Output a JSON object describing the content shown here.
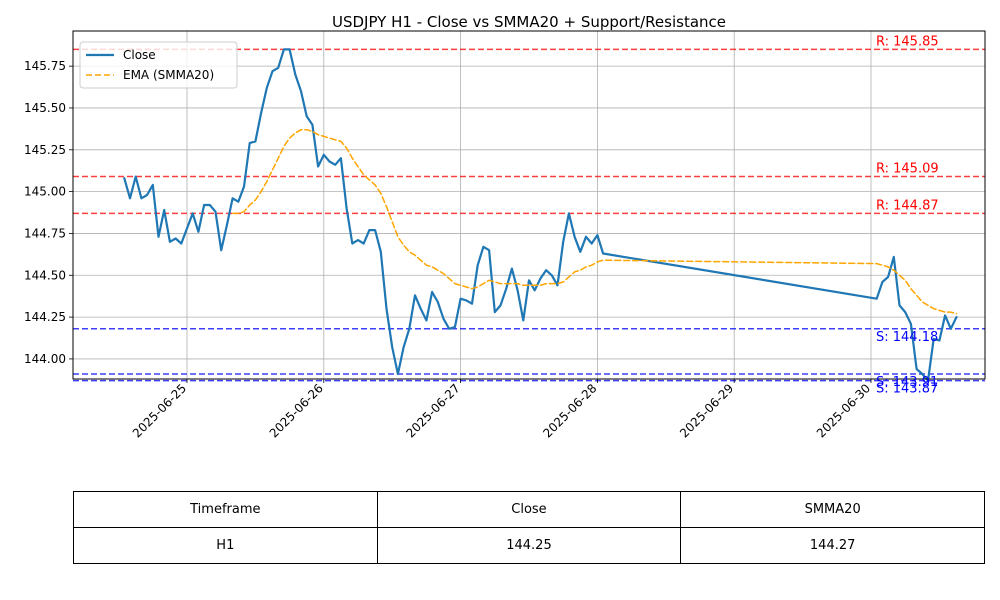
{
  "chart_data": {
    "type": "line",
    "title": "USDJPY H1 - Close vs SMMA20 + Support/Resistance",
    "xlabel": "",
    "ylabel": "",
    "x_ticks": [
      "2025-06-25",
      "2025-06-26",
      "2025-06-27",
      "2025-06-28",
      "2025-06-29",
      "2025-06-30"
    ],
    "xlim": [
      "2025-06-24 04:00",
      "2025-06-30 20:00"
    ],
    "y_ticks": [
      "144.00",
      "144.25",
      "144.50",
      "144.75",
      "145.00",
      "145.25",
      "145.50",
      "145.75"
    ],
    "ylim": [
      143.88,
      145.96
    ],
    "grid": true,
    "legend": {
      "placement": "top-left",
      "entries": [
        {
          "label": "Close",
          "color": "#1f77b4",
          "style": "solid"
        },
        {
          "label": "EMA (SMMA20)",
          "color": "#ffa500",
          "style": "dashed"
        }
      ]
    },
    "series": [
      {
        "name": "Close",
        "color": "#1f77b4",
        "points": [
          [
            "2025-06-24 13:00",
            145.08
          ],
          [
            "2025-06-24 14:00",
            144.96
          ],
          [
            "2025-06-24 15:00",
            145.09
          ],
          [
            "2025-06-24 16:00",
            144.96
          ],
          [
            "2025-06-24 17:00",
            144.98
          ],
          [
            "2025-06-24 18:00",
            145.04
          ],
          [
            "2025-06-24 19:00",
            144.73
          ],
          [
            "2025-06-24 20:00",
            144.89
          ],
          [
            "2025-06-24 21:00",
            144.7
          ],
          [
            "2025-06-24 22:00",
            144.72
          ],
          [
            "2025-06-24 23:00",
            144.69
          ],
          [
            "2025-06-25 00:00",
            144.78
          ],
          [
            "2025-06-25 01:00",
            144.87
          ],
          [
            "2025-06-25 02:00",
            144.76
          ],
          [
            "2025-06-25 03:00",
            144.92
          ],
          [
            "2025-06-25 04:00",
            144.92
          ],
          [
            "2025-06-25 05:00",
            144.88
          ],
          [
            "2025-06-25 06:00",
            144.65
          ],
          [
            "2025-06-25 07:00",
            144.8
          ],
          [
            "2025-06-25 08:00",
            144.96
          ],
          [
            "2025-06-25 09:00",
            144.94
          ],
          [
            "2025-06-25 10:00",
            145.03
          ],
          [
            "2025-06-25 11:00",
            145.29
          ],
          [
            "2025-06-25 12:00",
            145.3
          ],
          [
            "2025-06-25 13:00",
            145.47
          ],
          [
            "2025-06-25 14:00",
            145.62
          ],
          [
            "2025-06-25 15:00",
            145.72
          ],
          [
            "2025-06-25 16:00",
            145.74
          ],
          [
            "2025-06-25 17:00",
            145.85
          ],
          [
            "2025-06-25 18:00",
            145.85
          ],
          [
            "2025-06-25 19:00",
            145.7
          ],
          [
            "2025-06-25 20:00",
            145.6
          ],
          [
            "2025-06-25 21:00",
            145.45
          ],
          [
            "2025-06-25 22:00",
            145.4
          ],
          [
            "2025-06-25 23:00",
            145.15
          ],
          [
            "2025-06-26 00:00",
            145.22
          ],
          [
            "2025-06-26 01:00",
            145.18
          ],
          [
            "2025-06-26 02:00",
            145.16
          ],
          [
            "2025-06-26 03:00",
            145.2
          ],
          [
            "2025-06-26 04:00",
            144.9
          ],
          [
            "2025-06-26 05:00",
            144.69
          ],
          [
            "2025-06-26 06:00",
            144.71
          ],
          [
            "2025-06-26 07:00",
            144.69
          ],
          [
            "2025-06-26 08:00",
            144.77
          ],
          [
            "2025-06-26 09:00",
            144.77
          ],
          [
            "2025-06-26 10:00",
            144.64
          ],
          [
            "2025-06-26 11:00",
            144.3
          ],
          [
            "2025-06-26 12:00",
            144.07
          ],
          [
            "2025-06-26 13:00",
            143.91
          ],
          [
            "2025-06-26 14:00",
            144.07
          ],
          [
            "2025-06-26 15:00",
            144.18
          ],
          [
            "2025-06-26 16:00",
            144.38
          ],
          [
            "2025-06-26 17:00",
            144.3
          ],
          [
            "2025-06-26 18:00",
            144.23
          ],
          [
            "2025-06-26 19:00",
            144.4
          ],
          [
            "2025-06-26 20:00",
            144.34
          ],
          [
            "2025-06-26 21:00",
            144.24
          ],
          [
            "2025-06-26 22:00",
            144.18
          ],
          [
            "2025-06-26 23:00",
            144.19
          ],
          [
            "2025-06-27 00:00",
            144.36
          ],
          [
            "2025-06-27 01:00",
            144.35
          ],
          [
            "2025-06-27 02:00",
            144.33
          ],
          [
            "2025-06-27 03:00",
            144.56
          ],
          [
            "2025-06-27 04:00",
            144.67
          ],
          [
            "2025-06-27 05:00",
            144.65
          ],
          [
            "2025-06-27 06:00",
            144.28
          ],
          [
            "2025-06-27 07:00",
            144.32
          ],
          [
            "2025-06-27 08:00",
            144.42
          ],
          [
            "2025-06-27 09:00",
            144.54
          ],
          [
            "2025-06-27 10:00",
            144.41
          ],
          [
            "2025-06-27 11:00",
            144.23
          ],
          [
            "2025-06-27 12:00",
            144.47
          ],
          [
            "2025-06-27 13:00",
            144.41
          ],
          [
            "2025-06-27 14:00",
            144.48
          ],
          [
            "2025-06-27 15:00",
            144.53
          ],
          [
            "2025-06-27 16:00",
            144.5
          ],
          [
            "2025-06-27 17:00",
            144.44
          ],
          [
            "2025-06-27 18:00",
            144.7
          ],
          [
            "2025-06-27 19:00",
            144.87
          ],
          [
            "2025-06-27 20:00",
            144.73
          ],
          [
            "2025-06-27 21:00",
            144.64
          ],
          [
            "2025-06-27 22:00",
            144.73
          ],
          [
            "2025-06-27 23:00",
            144.69
          ],
          [
            "2025-06-28 00:00",
            144.74
          ],
          [
            "2025-06-28 01:00",
            144.63
          ],
          [
            "2025-06-30 01:00",
            144.36
          ],
          [
            "2025-06-30 02:00",
            144.46
          ],
          [
            "2025-06-30 03:00",
            144.49
          ],
          [
            "2025-06-30 04:00",
            144.61
          ],
          [
            "2025-06-30 05:00",
            144.32
          ],
          [
            "2025-06-30 06:00",
            144.28
          ],
          [
            "2025-06-30 07:00",
            144.21
          ],
          [
            "2025-06-30 08:00",
            143.94
          ],
          [
            "2025-06-30 09:00",
            143.91
          ],
          [
            "2025-06-30 10:00",
            143.87
          ],
          [
            "2025-06-30 11:00",
            144.12
          ],
          [
            "2025-06-30 12:00",
            144.11
          ],
          [
            "2025-06-30 13:00",
            144.26
          ],
          [
            "2025-06-30 14:00",
            144.18
          ],
          [
            "2025-06-30 15:00",
            144.25
          ]
        ]
      },
      {
        "name": "EMA (SMMA20)",
        "color": "#ffa500",
        "points": [
          [
            "2025-06-25 08:00",
            144.87
          ],
          [
            "2025-06-25 09:00",
            144.87
          ],
          [
            "2025-06-25 10:00",
            144.88
          ],
          [
            "2025-06-25 11:00",
            144.92
          ],
          [
            "2025-06-25 12:00",
            144.95
          ],
          [
            "2025-06-25 13:00",
            145.0
          ],
          [
            "2025-06-25 14:00",
            145.06
          ],
          [
            "2025-06-25 15:00",
            145.13
          ],
          [
            "2025-06-25 16:00",
            145.2
          ],
          [
            "2025-06-25 17:00",
            145.27
          ],
          [
            "2025-06-25 18:00",
            145.32
          ],
          [
            "2025-06-25 19:00",
            145.35
          ],
          [
            "2025-06-25 20:00",
            145.37
          ],
          [
            "2025-06-25 21:00",
            145.37
          ],
          [
            "2025-06-25 22:00",
            145.36
          ],
          [
            "2025-06-25 23:00",
            145.34
          ],
          [
            "2025-06-26 00:00",
            145.33
          ],
          [
            "2025-06-26 01:00",
            145.32
          ],
          [
            "2025-06-26 02:00",
            145.31
          ],
          [
            "2025-06-26 03:00",
            145.3
          ],
          [
            "2025-06-26 04:00",
            145.26
          ],
          [
            "2025-06-26 05:00",
            145.2
          ],
          [
            "2025-06-26 06:00",
            145.15
          ],
          [
            "2025-06-26 07:00",
            145.1
          ],
          [
            "2025-06-26 08:00",
            145.07
          ],
          [
            "2025-06-26 09:00",
            145.04
          ],
          [
            "2025-06-26 10:00",
            144.99
          ],
          [
            "2025-06-26 11:00",
            144.91
          ],
          [
            "2025-06-26 12:00",
            144.82
          ],
          [
            "2025-06-26 13:00",
            144.73
          ],
          [
            "2025-06-26 14:00",
            144.68
          ],
          [
            "2025-06-26 15:00",
            144.64
          ],
          [
            "2025-06-26 16:00",
            144.62
          ],
          [
            "2025-06-26 17:00",
            144.59
          ],
          [
            "2025-06-26 18:00",
            144.56
          ],
          [
            "2025-06-26 19:00",
            144.55
          ],
          [
            "2025-06-26 20:00",
            144.53
          ],
          [
            "2025-06-26 21:00",
            144.51
          ],
          [
            "2025-06-26 22:00",
            144.48
          ],
          [
            "2025-06-26 23:00",
            144.45
          ],
          [
            "2025-06-27 00:00",
            144.44
          ],
          [
            "2025-06-27 01:00",
            144.43
          ],
          [
            "2025-06-27 02:00",
            144.42
          ],
          [
            "2025-06-27 03:00",
            144.43
          ],
          [
            "2025-06-27 04:00",
            144.45
          ],
          [
            "2025-06-27 05:00",
            144.47
          ],
          [
            "2025-06-27 06:00",
            144.46
          ],
          [
            "2025-06-27 07:00",
            144.45
          ],
          [
            "2025-06-27 08:00",
            144.45
          ],
          [
            "2025-06-27 09:00",
            144.45
          ],
          [
            "2025-06-27 10:00",
            144.45
          ],
          [
            "2025-06-27 11:00",
            144.44
          ],
          [
            "2025-06-27 12:00",
            144.44
          ],
          [
            "2025-06-27 13:00",
            144.44
          ],
          [
            "2025-06-27 14:00",
            144.44
          ],
          [
            "2025-06-27 15:00",
            144.45
          ],
          [
            "2025-06-27 16:00",
            144.45
          ],
          [
            "2025-06-27 17:00",
            144.45
          ],
          [
            "2025-06-27 18:00",
            144.46
          ],
          [
            "2025-06-27 19:00",
            144.49
          ],
          [
            "2025-06-27 20:00",
            144.52
          ],
          [
            "2025-06-27 21:00",
            144.53
          ],
          [
            "2025-06-27 22:00",
            144.55
          ],
          [
            "2025-06-27 23:00",
            144.56
          ],
          [
            "2025-06-28 00:00",
            144.58
          ],
          [
            "2025-06-28 01:00",
            144.59
          ],
          [
            "2025-06-30 01:00",
            144.57
          ],
          [
            "2025-06-30 02:00",
            144.56
          ],
          [
            "2025-06-30 03:00",
            144.55
          ],
          [
            "2025-06-30 04:00",
            144.53
          ],
          [
            "2025-06-30 05:00",
            144.5
          ],
          [
            "2025-06-30 06:00",
            144.47
          ],
          [
            "2025-06-30 07:00",
            144.42
          ],
          [
            "2025-06-30 08:00",
            144.38
          ],
          [
            "2025-06-30 09:00",
            144.34
          ],
          [
            "2025-06-30 10:00",
            144.32
          ],
          [
            "2025-06-30 11:00",
            144.3
          ],
          [
            "2025-06-30 12:00",
            144.29
          ],
          [
            "2025-06-30 13:00",
            144.28
          ],
          [
            "2025-06-30 14:00",
            144.28
          ],
          [
            "2025-06-30 15:00",
            144.27
          ]
        ]
      }
    ],
    "levels": [
      {
        "kind": "resistance",
        "value": 145.85,
        "label": "R: 145.85",
        "color": "#ff0000"
      },
      {
        "kind": "resistance",
        "value": 145.09,
        "label": "R: 145.09",
        "color": "#ff0000"
      },
      {
        "kind": "resistance",
        "value": 144.87,
        "label": "R: 144.87",
        "color": "#ff0000"
      },
      {
        "kind": "support",
        "value": 144.18,
        "label": "S: 144.18",
        "color": "#0000ff"
      },
      {
        "kind": "support",
        "value": 143.91,
        "label": "S: 143.91",
        "color": "#0000ff"
      },
      {
        "kind": "support",
        "value": 143.87,
        "label": "S: 143.87",
        "color": "#0000ff"
      }
    ]
  },
  "table": {
    "headers": [
      "Timeframe",
      "Close",
      "SMMA20"
    ],
    "row": [
      "H1",
      "144.25",
      "144.27"
    ]
  }
}
